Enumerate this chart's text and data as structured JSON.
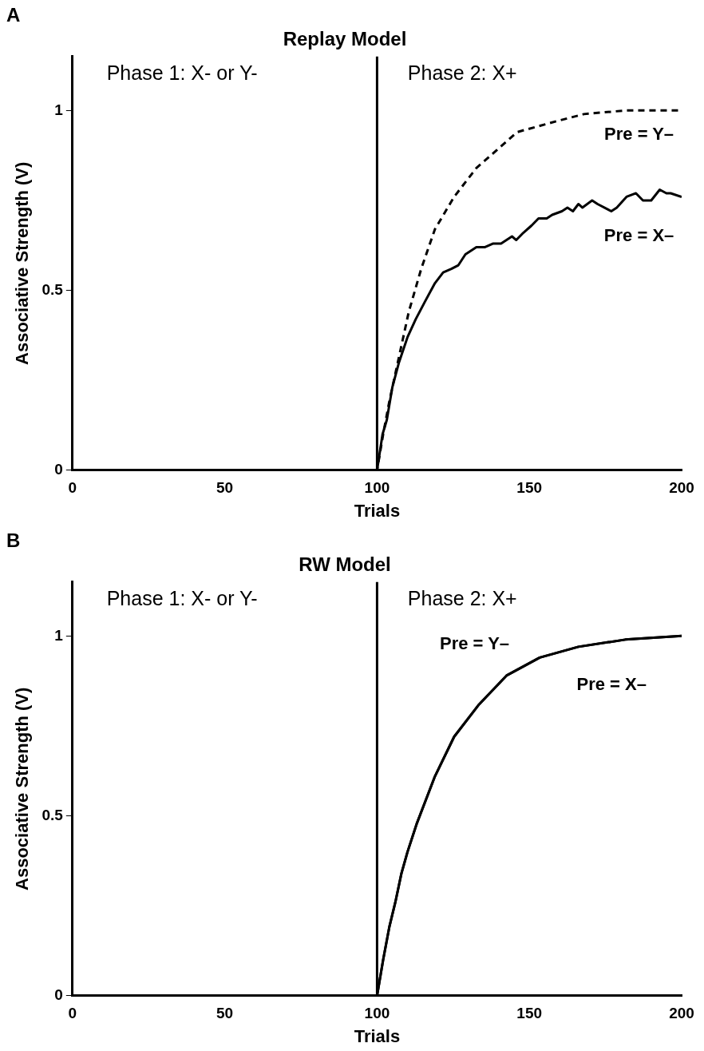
{
  "chart_data": [
    {
      "type": "line",
      "title": "Replay Model",
      "xlabel": "Trials",
      "ylabel": "Associative Strength (V)",
      "xlim": [
        0,
        200
      ],
      "xticks": [
        0,
        50,
        100,
        150,
        200
      ],
      "ylim": [
        0,
        1.15
      ],
      "yticks": [
        0,
        0.5,
        1
      ],
      "grid": false,
      "legend": false,
      "marker": "none",
      "ref_lines": [
        {
          "axis": "x",
          "value": 100,
          "color": "#000000"
        }
      ],
      "annotations": [
        "A",
        "Phase 1: X- or Y-",
        "Phase 2: X+"
      ],
      "series": [
        {
          "name": "Pre = X–",
          "color": "#000000",
          "line_style": "solid",
          "x": [
            0,
            100,
            101.8,
            103.2,
            105,
            107.2,
            110,
            112.7,
            115.8,
            119,
            121.7,
            124.4,
            126.7,
            129,
            132.6,
            135.3,
            138,
            140.7,
            142.5,
            144.3,
            145.7,
            148,
            150.7,
            153,
            155.7,
            157.5,
            160.7,
            162.5,
            164.3,
            166.1,
            167.4,
            170.6,
            172.4,
            176.9,
            178.7,
            181.9,
            185,
            187.3,
            190,
            192.8,
            195,
            196.4,
            200
          ],
          "values": [
            0,
            0,
            0.1,
            0.14,
            0.23,
            0.3,
            0.37,
            0.42,
            0.47,
            0.52,
            0.55,
            0.56,
            0.57,
            0.6,
            0.62,
            0.62,
            0.63,
            0.63,
            0.64,
            0.65,
            0.64,
            0.66,
            0.68,
            0.7,
            0.7,
            0.71,
            0.72,
            0.73,
            0.72,
            0.74,
            0.73,
            0.75,
            0.74,
            0.72,
            0.73,
            0.76,
            0.77,
            0.75,
            0.75,
            0.78,
            0.77,
            0.77,
            0.76
          ]
        },
        {
          "name": "Pre = Y–",
          "color": "#000000",
          "line_style": "dashed",
          "x": [
            0,
            100,
            102,
            104,
            106.3,
            110.4,
            114.5,
            119,
            125.3,
            132.6,
            138,
            146,
            158.8,
            167.9,
            181.4,
            200
          ],
          "values": [
            0,
            0,
            0.1,
            0.19,
            0.28,
            0.44,
            0.56,
            0.67,
            0.76,
            0.84,
            0.88,
            0.94,
            0.97,
            0.99,
            1.0,
            1.0
          ]
        }
      ]
    },
    {
      "type": "line",
      "title": "RW Model",
      "xlabel": "Trials",
      "ylabel": "Associative Strength (V)",
      "xlim": [
        0,
        200
      ],
      "xticks": [
        0,
        50,
        100,
        150,
        200
      ],
      "ylim": [
        0,
        1.15
      ],
      "yticks": [
        0,
        0.5,
        1
      ],
      "grid": false,
      "legend": false,
      "marker": "none",
      "ref_lines": [
        {
          "axis": "x",
          "value": 100,
          "color": "#000000"
        }
      ],
      "annotations": [
        "B",
        "Phase 1: X- or Y-",
        "Phase 2: X+"
      ],
      "series": [
        {
          "name": "Pre = X–",
          "color": "#000000",
          "line_style": "solid",
          "x": [
            0,
            100,
            102,
            104,
            106,
            108,
            110,
            113.1,
            119,
            125.3,
            133.5,
            142.5,
            153.4,
            166.1,
            181.5,
            200
          ],
          "values": [
            0,
            0,
            0.1,
            0.19,
            0.26,
            0.34,
            0.4,
            0.48,
            0.61,
            0.72,
            0.81,
            0.89,
            0.94,
            0.97,
            0.99,
            1.0
          ]
        },
        {
          "name": "Pre = Y–",
          "color": "#000000",
          "line_style": "solid",
          "x": [
            0,
            100,
            102,
            104,
            106,
            108,
            110,
            113.1,
            119,
            125.3,
            133.5,
            142.5,
            153.4,
            166.1,
            181.5,
            200
          ],
          "values": [
            0,
            0,
            0.1,
            0.19,
            0.26,
            0.34,
            0.4,
            0.48,
            0.61,
            0.72,
            0.81,
            0.89,
            0.94,
            0.97,
            0.99,
            1.0
          ]
        }
      ]
    }
  ]
}
